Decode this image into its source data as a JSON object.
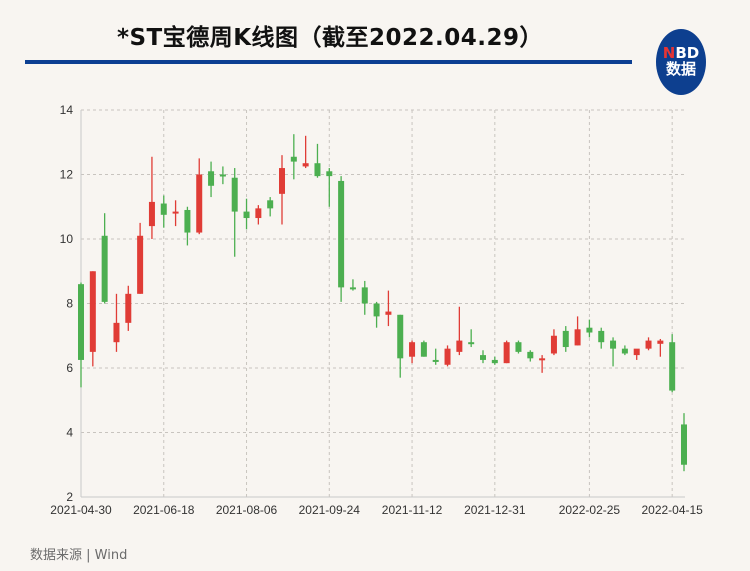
{
  "header": {
    "title": "*ST宝德周K线图（截至2022.04.29）",
    "logo_top_n": "N",
    "logo_top_rest": "BD",
    "logo_bottom": "数据"
  },
  "footer": {
    "source": "数据来源 | Wind"
  },
  "colors": {
    "up": "#e03c36",
    "down": "#4caf50",
    "rule": "#0c3f92",
    "grid": "#c8c4bf",
    "background": "#f8f5f1"
  },
  "chart_data": {
    "type": "candlestick",
    "title": "*ST宝德周K线图（截至2022.04.29）",
    "xlabel": "",
    "ylabel": "",
    "ylim": [
      2,
      14
    ],
    "yticks": [
      2,
      4,
      6,
      8,
      10,
      12,
      14
    ],
    "xtick_labels": [
      "2021-04-30",
      "2021-06-18",
      "2021-08-06",
      "2021-09-24",
      "2021-11-12",
      "2021-12-31",
      "2022-02-25",
      "2022-04-15"
    ],
    "xtick_indices": [
      0,
      7,
      14,
      21,
      28,
      35,
      43,
      50
    ],
    "grid": true,
    "legend": "none",
    "color_convention": "red = rising (close > open), green = falling (close < open)",
    "candles": [
      {
        "o": 8.6,
        "h": 8.65,
        "l": 5.4,
        "c": 6.25
      },
      {
        "o": 6.5,
        "h": 9.0,
        "l": 6.05,
        "c": 9.0
      },
      {
        "o": 10.1,
        "h": 10.8,
        "l": 8.0,
        "c": 8.05
      },
      {
        "o": 6.8,
        "h": 8.3,
        "l": 6.5,
        "c": 7.4
      },
      {
        "o": 7.4,
        "h": 8.55,
        "l": 7.15,
        "c": 8.3
      },
      {
        "o": 8.3,
        "h": 10.5,
        "l": 8.3,
        "c": 10.1
      },
      {
        "o": 10.4,
        "h": 12.55,
        "l": 10.0,
        "c": 11.15
      },
      {
        "o": 11.1,
        "h": 11.35,
        "l": 10.35,
        "c": 10.75
      },
      {
        "o": 10.8,
        "h": 11.2,
        "l": 10.4,
        "c": 10.85
      },
      {
        "o": 10.9,
        "h": 11.0,
        "l": 9.8,
        "c": 10.2
      },
      {
        "o": 10.2,
        "h": 12.5,
        "l": 10.15,
        "c": 12.0
      },
      {
        "o": 12.1,
        "h": 12.4,
        "l": 11.3,
        "c": 11.65
      },
      {
        "o": 12.0,
        "h": 12.25,
        "l": 11.7,
        "c": 11.95
      },
      {
        "o": 11.9,
        "h": 12.2,
        "l": 9.45,
        "c": 10.85
      },
      {
        "o": 10.85,
        "h": 11.25,
        "l": 10.3,
        "c": 10.65
      },
      {
        "o": 10.65,
        "h": 11.05,
        "l": 10.45,
        "c": 10.95
      },
      {
        "o": 11.2,
        "h": 11.3,
        "l": 10.7,
        "c": 10.95
      },
      {
        "o": 11.4,
        "h": 12.6,
        "l": 10.45,
        "c": 12.2
      },
      {
        "o": 12.55,
        "h": 13.25,
        "l": 11.85,
        "c": 12.4
      },
      {
        "o": 12.25,
        "h": 13.2,
        "l": 12.2,
        "c": 12.35
      },
      {
        "o": 12.35,
        "h": 12.95,
        "l": 11.9,
        "c": 11.95
      },
      {
        "o": 12.1,
        "h": 12.2,
        "l": 11.0,
        "c": 11.95
      },
      {
        "o": 11.8,
        "h": 11.95,
        "l": 8.05,
        "c": 8.5
      },
      {
        "o": 8.5,
        "h": 8.75,
        "l": 8.4,
        "c": 8.45
      },
      {
        "o": 8.5,
        "h": 8.7,
        "l": 7.65,
        "c": 8.0
      },
      {
        "o": 8.0,
        "h": 8.05,
        "l": 7.25,
        "c": 7.6
      },
      {
        "o": 7.65,
        "h": 8.4,
        "l": 7.3,
        "c": 7.75
      },
      {
        "o": 7.65,
        "h": 7.65,
        "l": 5.7,
        "c": 6.3
      },
      {
        "o": 6.35,
        "h": 6.85,
        "l": 6.15,
        "c": 6.8
      },
      {
        "o": 6.8,
        "h": 6.85,
        "l": 6.35,
        "c": 6.35
      },
      {
        "o": 6.25,
        "h": 6.6,
        "l": 6.1,
        "c": 6.2
      },
      {
        "o": 6.1,
        "h": 6.7,
        "l": 6.05,
        "c": 6.6
      },
      {
        "o": 6.5,
        "h": 7.9,
        "l": 6.4,
        "c": 6.85
      },
      {
        "o": 6.8,
        "h": 7.2,
        "l": 6.65,
        "c": 6.75
      },
      {
        "o": 6.4,
        "h": 6.55,
        "l": 6.15,
        "c": 6.25
      },
      {
        "o": 6.25,
        "h": 6.35,
        "l": 6.1,
        "c": 6.15
      },
      {
        "o": 6.15,
        "h": 6.85,
        "l": 6.15,
        "c": 6.8
      },
      {
        "o": 6.8,
        "h": 6.85,
        "l": 6.45,
        "c": 6.5
      },
      {
        "o": 6.5,
        "h": 6.55,
        "l": 6.2,
        "c": 6.3
      },
      {
        "o": 6.25,
        "h": 6.4,
        "l": 5.85,
        "c": 6.3
      },
      {
        "o": 6.45,
        "h": 7.2,
        "l": 6.4,
        "c": 7.0
      },
      {
        "o": 7.15,
        "h": 7.3,
        "l": 6.5,
        "c": 6.65
      },
      {
        "o": 6.7,
        "h": 7.6,
        "l": 6.7,
        "c": 7.2
      },
      {
        "o": 7.25,
        "h": 7.5,
        "l": 6.95,
        "c": 7.1
      },
      {
        "o": 7.15,
        "h": 7.25,
        "l": 6.6,
        "c": 6.8
      },
      {
        "o": 6.85,
        "h": 6.95,
        "l": 6.05,
        "c": 6.6
      },
      {
        "o": 6.6,
        "h": 6.7,
        "l": 6.4,
        "c": 6.45
      },
      {
        "o": 6.4,
        "h": 6.55,
        "l": 6.25,
        "c": 6.6
      },
      {
        "o": 6.6,
        "h": 6.95,
        "l": 6.55,
        "c": 6.85
      },
      {
        "o": 6.75,
        "h": 6.9,
        "l": 6.35,
        "c": 6.85
      },
      {
        "o": 6.8,
        "h": 7.05,
        "l": 5.25,
        "c": 5.3
      },
      {
        "o": 4.25,
        "h": 4.6,
        "l": 2.8,
        "c": 3.0
      }
    ]
  }
}
